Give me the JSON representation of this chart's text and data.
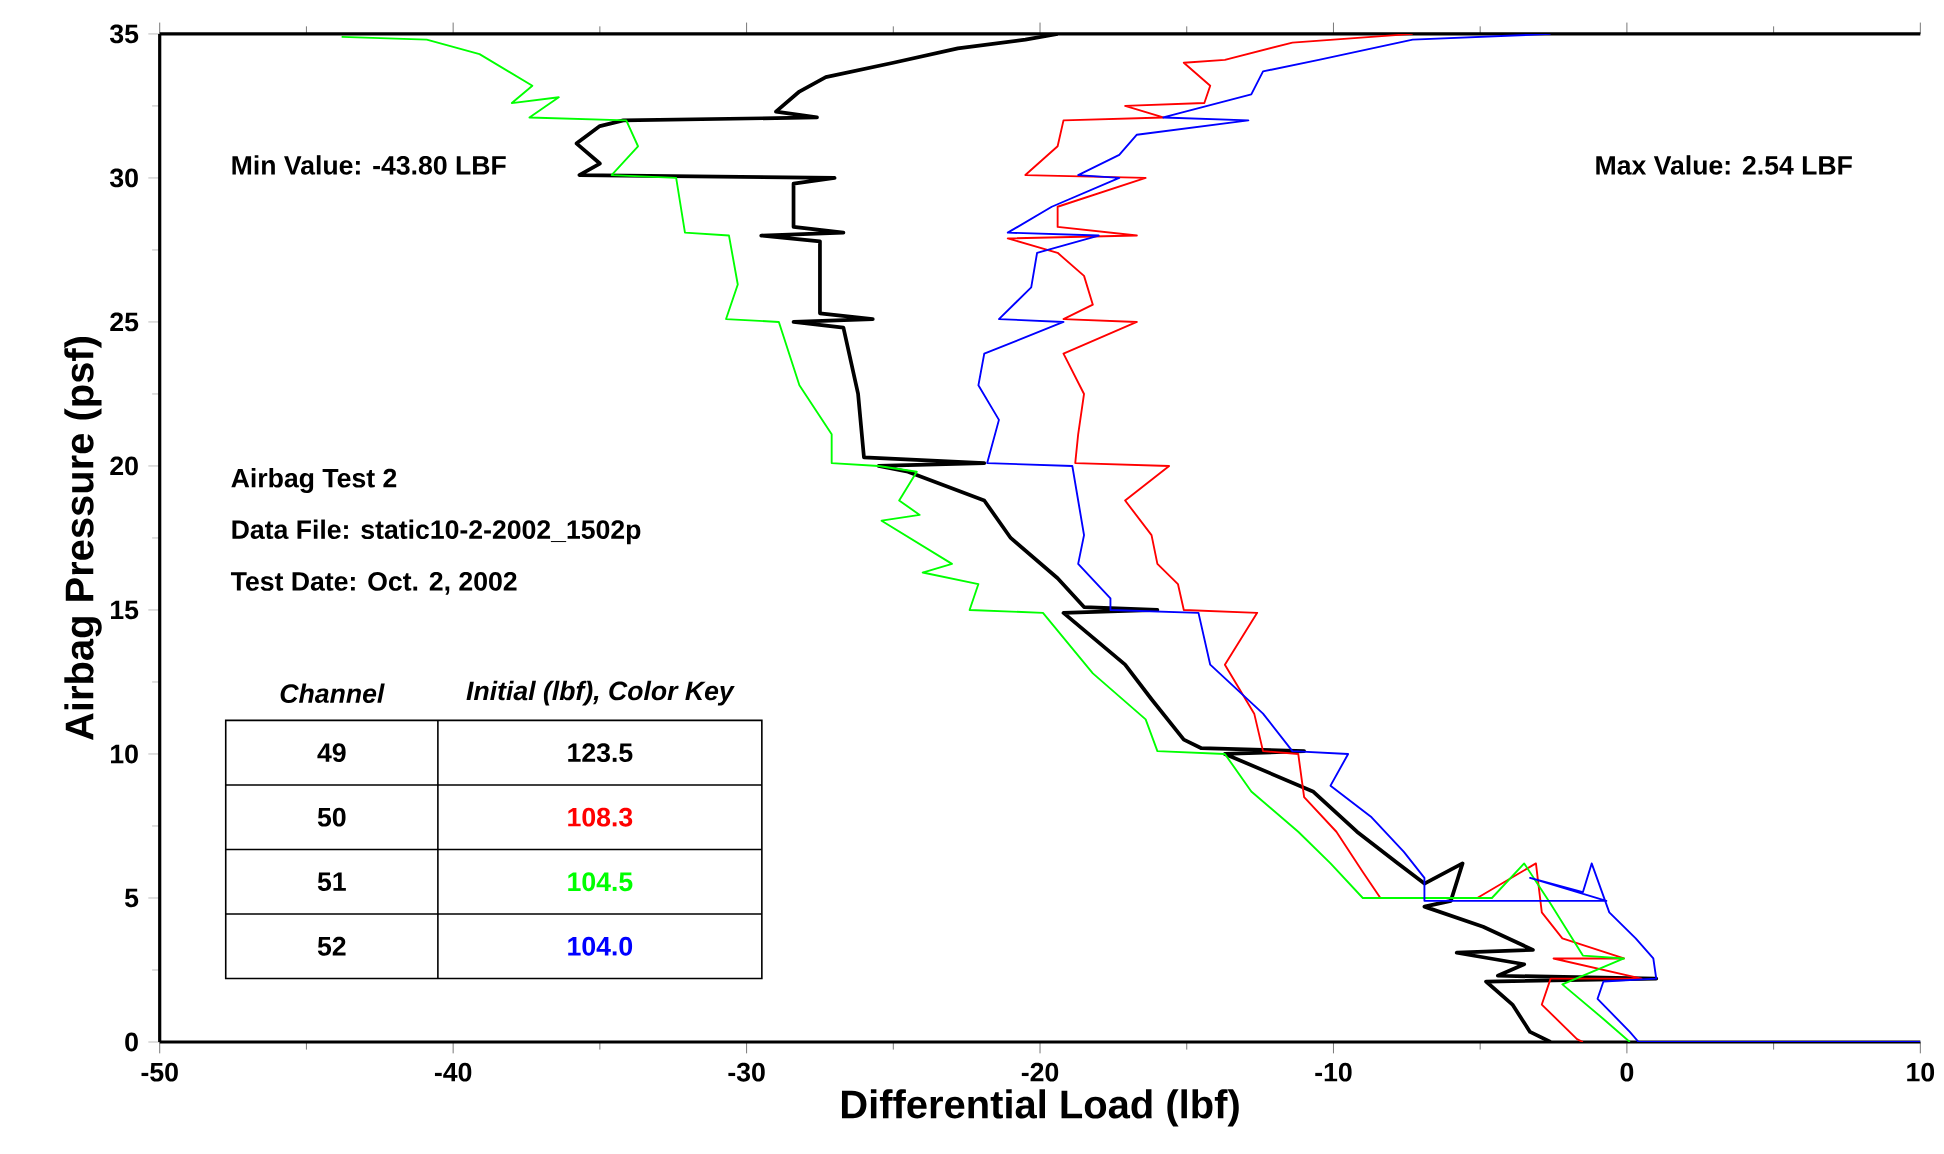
{
  "chart_data": {
    "type": "line",
    "xlabel": "Differential Load (lbf)",
    "ylabel": "Airbag Pressure (psf)",
    "xlim": [
      -50,
      10
    ],
    "ylim": [
      0,
      35
    ],
    "xticks": [
      -50,
      -40,
      -30,
      -20,
      -10,
      0,
      10
    ],
    "yticks": [
      0,
      5,
      10,
      15,
      20,
      25,
      30,
      35
    ],
    "grid": false,
    "marker": "none",
    "line_style": "solid",
    "annotations": [
      "Min Value: -43.80 LBF",
      "Max Value:  2.54 LBF",
      "Airbag Test 2",
      "Data File: static10-2-2002_1502p",
      "Test Date:  Oct. 2, 2002",
      "Channel",
      "Initial (lbf), Color Key",
      "123.5",
      "108.3",
      "104.5",
      "104.0",
      "49",
      "50",
      "51",
      "52"
    ],
    "series": [
      {
        "color": "#000000",
        "x": [
          -2.6,
          -3.3,
          -3.9,
          -4.8,
          1.0,
          -4.4,
          -3.5,
          -5.8,
          -3.2,
          -4.9,
          -6.9,
          -6.0,
          -5.6,
          -6.9,
          -7.8,
          -9.2,
          -10.7,
          -13.7,
          -11.0,
          -14.5,
          -15.1,
          -16.2,
          -17.1,
          -19.2,
          -16.0,
          -18.5,
          -19.4,
          -21.0,
          -21.9,
          -24.5,
          -25.5,
          -21.9,
          -26.0,
          -26.2,
          -26.7,
          -28.4,
          -25.7,
          -27.5,
          -27.5,
          -29.5,
          -26.7,
          -28.4,
          -28.4,
          -27.0,
          -35.7,
          -35.0,
          -35.8,
          -35.0,
          -34.2,
          -27.6,
          -29.0,
          -28.2,
          -27.3,
          -25.0,
          -22.8,
          -20.5,
          -19.4
        ],
        "values": [
          0,
          0.35,
          1.3,
          2.1,
          2.2,
          2.3,
          2.7,
          3.1,
          3.2,
          4.0,
          4.7,
          4.9,
          6.2,
          5.5,
          6.2,
          7.3,
          8.7,
          10.0,
          10.1,
          10.2,
          10.5,
          11.9,
          13.1,
          14.9,
          15.0,
          15.1,
          16.1,
          17.5,
          18.8,
          19.8,
          20.0,
          20.1,
          20.3,
          22.5,
          24.8,
          25.0,
          25.1,
          25.3,
          27.8,
          28.0,
          28.1,
          28.3,
          29.8,
          30.0,
          30.1,
          30.5,
          31.2,
          31.8,
          32.0,
          32.1,
          32.3,
          33.0,
          33.5,
          34.0,
          34.5,
          34.8,
          35.0
        ]
      },
      {
        "color": "#ff0000",
        "x": [
          -1.5,
          -1.7,
          -2.9,
          -2.6,
          0.5,
          -2.5,
          -0.1,
          -2.2,
          -2.9,
          -3.1,
          -5.1,
          -8.4,
          -9.0,
          -9.9,
          -11.0,
          -11.2,
          -12.4,
          -12.7,
          -13.7,
          -12.6,
          -15.1,
          -15.3,
          -16.0,
          -16.2,
          -17.1,
          -15.6,
          -18.8,
          -18.7,
          -18.5,
          -19.2,
          -16.7,
          -19.2,
          -18.2,
          -18.5,
          -19.4,
          -21.1,
          -16.7,
          -19.4,
          -19.4,
          -16.4,
          -20.5,
          -19.4,
          -19.2,
          -15.8,
          -17.1,
          -14.4,
          -14.2,
          -15.1,
          -13.7,
          -11.4,
          -7.3
        ],
        "values": [
          0,
          0.1,
          1.3,
          2.2,
          2.2,
          2.9,
          2.9,
          3.6,
          4.5,
          6.2,
          5.0,
          5.0,
          5.9,
          7.3,
          8.5,
          10.0,
          10.1,
          11.4,
          13.1,
          14.9,
          15.0,
          15.9,
          16.6,
          17.6,
          18.8,
          20.0,
          20.1,
          21.1,
          22.5,
          23.9,
          25.0,
          25.1,
          25.6,
          26.6,
          27.4,
          27.9,
          28.0,
          28.3,
          29.0,
          30.0,
          30.1,
          31.1,
          32.0,
          32.1,
          32.5,
          32.6,
          33.2,
          34.0,
          34.1,
          34.7,
          35.0
        ]
      },
      {
        "color": "#00ff00",
        "x": [
          0.1,
          -0.8,
          -2.2,
          -0.1,
          -1.5,
          -2.6,
          -3.5,
          -4.6,
          -9.0,
          -10.1,
          -11.2,
          -12.8,
          -13.7,
          -16.0,
          -16.4,
          -18.2,
          -19.9,
          -22.4,
          -22.1,
          -24.0,
          -23.0,
          -25.4,
          -24.1,
          -24.8,
          -24.2,
          -25.5,
          -27.1,
          -27.1,
          -28.2,
          -28.9,
          -30.7,
          -30.3,
          -30.6,
          -32.1,
          -32.4,
          -34.6,
          -33.7,
          -34.1,
          -37.4,
          -36.4,
          -38.0,
          -37.3,
          -39.1,
          -40.9,
          -43.8
        ],
        "values": [
          0,
          0.8,
          2.0,
          2.9,
          3.0,
          4.8,
          6.2,
          5.0,
          5.0,
          6.2,
          7.3,
          8.7,
          10.0,
          10.1,
          11.2,
          12.8,
          14.9,
          15.0,
          15.9,
          16.3,
          16.6,
          18.1,
          18.3,
          18.8,
          19.8,
          20.0,
          20.1,
          21.1,
          22.8,
          25.0,
          25.1,
          26.3,
          28.0,
          28.1,
          30.0,
          30.1,
          31.1,
          32.0,
          32.1,
          32.8,
          32.6,
          33.2,
          34.3,
          34.8,
          34.9
        ]
      },
      {
        "color": "#0000ff",
        "x": [
          10,
          0.4,
          0.1,
          -1.0,
          -0.8,
          1.0,
          0.9,
          0.3,
          -0.6,
          -1.2,
          -1.5,
          -3.3,
          -0.7,
          -6.9,
          -6.9,
          -7.6,
          -8.7,
          -10.1,
          -9.5,
          -11.4,
          -12.4,
          -14.2,
          -14.6,
          -17.6,
          -17.6,
          -18.7,
          -18.5,
          -18.7,
          -18.9,
          -21.8,
          -21.4,
          -22.1,
          -21.9,
          -19.2,
          -21.4,
          -20.3,
          -20.1,
          -18.0,
          -21.1,
          -19.6,
          -17.3,
          -18.7,
          -17.3,
          -16.7,
          -12.9,
          -15.8,
          -12.8,
          -12.4,
          -10.5,
          -7.3,
          -2.6
        ],
        "values": [
          0,
          0,
          0.35,
          1.5,
          2.1,
          2.2,
          2.9,
          3.6,
          4.5,
          6.2,
          5.2,
          5.7,
          4.9,
          4.9,
          5.7,
          6.6,
          7.8,
          8.9,
          10.0,
          10.1,
          11.4,
          13.1,
          14.9,
          15.0,
          15.4,
          16.6,
          17.6,
          18.8,
          20.0,
          20.1,
          21.6,
          22.8,
          23.9,
          25.0,
          25.1,
          26.2,
          27.4,
          28.0,
          28.1,
          29.0,
          30.0,
          30.1,
          30.8,
          31.5,
          32.0,
          32.1,
          32.9,
          33.7,
          34.1,
          34.8,
          35.0
        ]
      }
    ]
  }
}
